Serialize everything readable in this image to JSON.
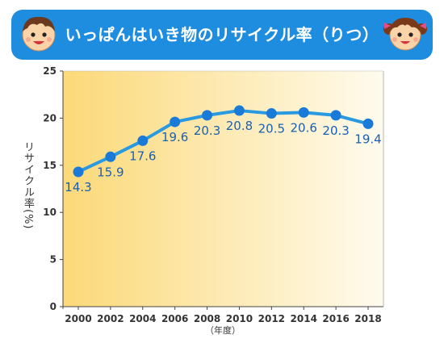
{
  "header": {
    "title": "いっぱんはいき物のリサイクル率（りつ）"
  },
  "colors": {
    "banner": "#1e8de0",
    "line": "#2a9ae0",
    "point": "#1a7ad8",
    "label": "#1a5fb4",
    "gradient_start": "#fcd978",
    "gradient_end": "#fefbee"
  },
  "chart_data": {
    "type": "line",
    "x": [
      2000,
      2002,
      2004,
      2006,
      2008,
      2010,
      2012,
      2014,
      2016,
      2018
    ],
    "series": [
      {
        "values": [
          14.3,
          15.9,
          17.6,
          19.6,
          20.3,
          20.8,
          20.5,
          20.6,
          20.3,
          19.4
        ],
        "labels": [
          "14.3",
          "15.9",
          "17.6",
          "19.6",
          "20.3",
          "20.8",
          "20.5",
          "20.6",
          "20.3",
          "19.4"
        ]
      }
    ],
    "xlabel": "（年度）",
    "ylabel": "リサイクル率(%)",
    "ylim": [
      0,
      25
    ],
    "yticks": [
      0,
      5,
      10,
      15,
      20,
      25
    ],
    "xticks": [
      "2000",
      "2002",
      "2004",
      "2006",
      "2008",
      "2010",
      "2012",
      "2014",
      "2016",
      "2018"
    ],
    "grid": false,
    "legend": "none"
  }
}
